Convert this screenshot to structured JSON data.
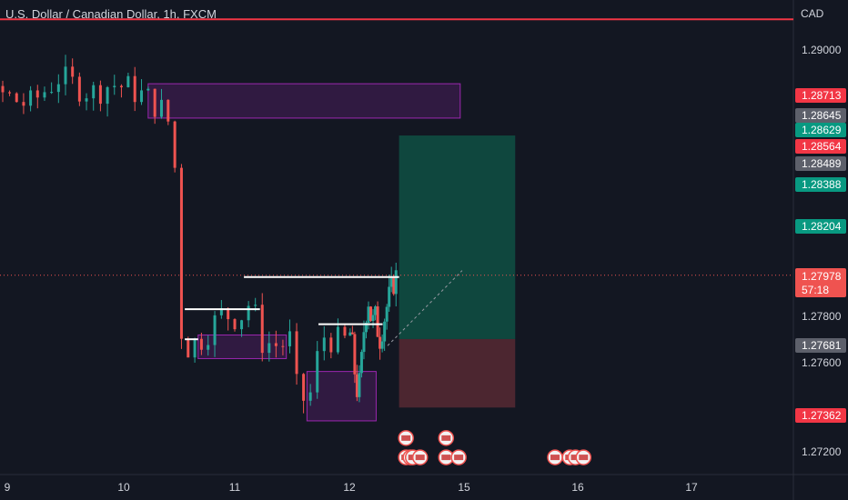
{
  "header": {
    "title": "U.S. Dollar / Canadian Dollar, 1h, FXCM",
    "currency": "CAD"
  },
  "colors": {
    "background": "#131722",
    "up": "#26a69a",
    "down": "#ef5350",
    "alert_line": "#f23645",
    "grid_text": "#d1d4dc",
    "zone_purple": "#9c27b0",
    "long_profit": "#0f5848",
    "long_risk": "#5b2a34"
  },
  "chart_data": {
    "type": "candlestick",
    "symbol": "USDCAD",
    "interval": "1h",
    "x_ticks": [
      "9",
      "10",
      "11",
      "12",
      "15",
      "16",
      "17"
    ],
    "y_ticks": [
      "1.29000",
      "1.27800",
      "1.27600",
      "1.27200"
    ],
    "ylim": [
      1.2705,
      1.2926
    ],
    "price_tags": [
      {
        "label": "1.28713",
        "value": 1.28713,
        "color": "#f23645"
      },
      {
        "label": "1.28645",
        "value": 1.28645,
        "color": "#5d606b"
      },
      {
        "label": "1.28629",
        "value": 1.28629,
        "color": "#089981"
      },
      {
        "label": "1.28564",
        "value": 1.28564,
        "color": "#f23645"
      },
      {
        "label": "1.28489",
        "value": 1.28489,
        "color": "#5d606b"
      },
      {
        "label": "1.28388",
        "value": 1.28388,
        "color": "#089981"
      },
      {
        "label": "1.28204",
        "value": 1.28204,
        "color": "#089981"
      },
      {
        "label": "1.27681",
        "value": 1.27681,
        "color": "#5d606b"
      },
      {
        "label": "1.27362",
        "value": 1.27362,
        "color": "#f23645"
      }
    ],
    "current_price": {
      "label": "1.27978",
      "countdown": "57:18",
      "value": 1.27978
    },
    "alert_line_price": 1.2917,
    "long_position": {
      "entry": 1.27681,
      "target": 1.28629,
      "stop": 1.27362
    },
    "zones": [
      {
        "from_day": 10.22,
        "to_day": 14.9,
        "top": 1.2887,
        "bottom": 1.2871
      },
      {
        "from_day": 10.67,
        "to_day": 11.45,
        "top": 1.277,
        "bottom": 1.2759
      },
      {
        "from_day": 11.63,
        "to_day": 12.7,
        "top": 1.2753,
        "bottom": 1.273
      }
    ],
    "levels": [
      {
        "from_day": 10.55,
        "to_day": 11.22,
        "price": 1.2782
      },
      {
        "from_day": 11.08,
        "to_day": 13.3,
        "price": 1.2797
      },
      {
        "from_day": 11.73,
        "to_day": 12.87,
        "price": 1.2775
      },
      {
        "from_day": 10.55,
        "to_day": 10.67,
        "price": 1.2768
      }
    ],
    "path_points": [
      [
        8.0,
        1.286
      ],
      [
        8.25,
        1.2867
      ],
      [
        8.5,
        1.288
      ],
      [
        8.75,
        1.2873
      ],
      [
        9.0,
        1.2882
      ],
      [
        9.25,
        1.2877
      ],
      [
        9.5,
        1.289
      ],
      [
        9.65,
        1.2886
      ],
      [
        9.8,
        1.2883
      ],
      [
        9.95,
        1.2887
      ],
      [
        10.1,
        1.2885
      ],
      [
        10.28,
        1.288
      ],
      [
        10.42,
        1.2874
      ],
      [
        10.5,
        1.2865
      ],
      [
        10.52,
        1.2848
      ],
      [
        10.55,
        1.2822
      ],
      [
        10.58,
        1.2772
      ],
      [
        10.62,
        1.2764
      ],
      [
        10.75,
        1.2768
      ],
      [
        10.95,
        1.278
      ],
      [
        11.1,
        1.2778
      ],
      [
        11.2,
        1.2786
      ],
      [
        11.3,
        1.2767
      ],
      [
        11.45,
        1.2765
      ],
      [
        11.55,
        1.2768
      ],
      [
        11.6,
        1.2745
      ],
      [
        11.7,
        1.2737
      ],
      [
        11.82,
        1.277
      ],
      [
        12.0,
        1.2766
      ],
      [
        12.1,
        1.2772
      ],
      [
        12.18,
        1.2756
      ],
      [
        12.28,
        1.2742
      ],
      [
        12.35,
        1.275
      ],
      [
        12.45,
        1.2775
      ],
      [
        12.55,
        1.2788
      ],
      [
        12.65,
        1.2775
      ],
      [
        12.75,
        1.2778
      ],
      [
        12.85,
        1.2768
      ],
      [
        12.95,
        1.2776
      ],
      [
        13.05,
        1.2784
      ],
      [
        13.15,
        1.279
      ],
      [
        13.25,
        1.2797
      ]
    ],
    "event_rows": [
      {
        "price": 1.2722,
        "day_positions": [
          13.48
        ]
      },
      {
        "price": 1.2713,
        "day_positions": [
          13.48,
          13.6,
          13.66,
          13.85,
          14.53,
          15.8,
          15.93,
          15.98,
          16.05
        ]
      },
      {
        "price": 1.2722,
        "day_positions": [
          14.53
        ]
      },
      {
        "price": 1.2713,
        "day_positions": [
          14.86
        ]
      }
    ]
  }
}
